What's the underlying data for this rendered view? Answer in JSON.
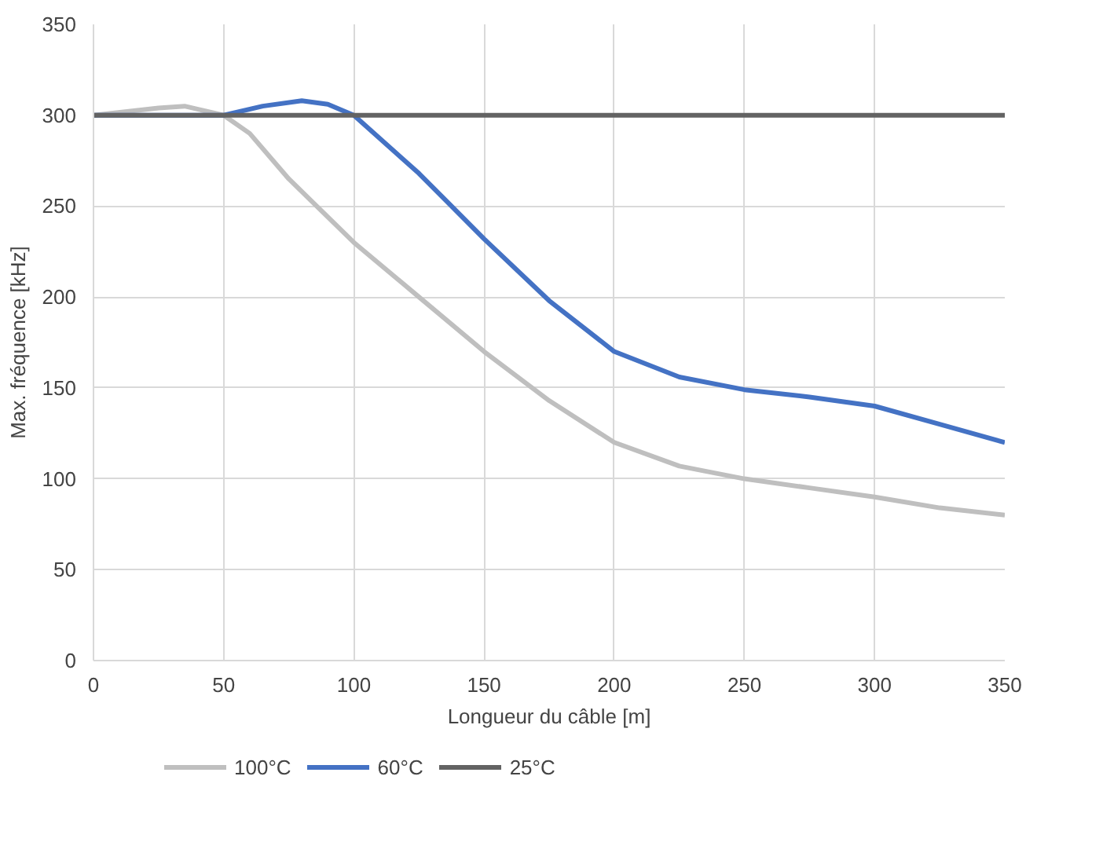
{
  "chart_data": {
    "type": "line",
    "xlabel": "Longueur du câble [m]",
    "ylabel": "Max. fréquence [kHz]",
    "xlim": [
      0,
      350
    ],
    "xticks": [
      0,
      50,
      100,
      150,
      200,
      250,
      300,
      350
    ],
    "ylim": [
      0,
      350
    ],
    "yticks": [
      0,
      50,
      100,
      150,
      200,
      250,
      300,
      350
    ],
    "grid": true,
    "legend": "bottom",
    "series": [
      {
        "name": "100°C",
        "color": "#bfbfbf",
        "x": [
          0,
          25,
          35,
          50,
          60,
          75,
          100,
          125,
          150,
          175,
          200,
          225,
          250,
          275,
          300,
          325,
          350
        ],
        "values": [
          300,
          304,
          305,
          300,
          290,
          265,
          230,
          200,
          170,
          143,
          120,
          107,
          100,
          95,
          90,
          84,
          80
        ]
      },
      {
        "name": "60°C",
        "color": "#4472c4",
        "x": [
          0,
          25,
          50,
          65,
          80,
          90,
          100,
          125,
          150,
          175,
          200,
          225,
          250,
          275,
          300,
          325,
          350
        ],
        "values": [
          300,
          300,
          300,
          305,
          308,
          306,
          300,
          268,
          232,
          198,
          170,
          156,
          149,
          145,
          140,
          130,
          120
        ]
      },
      {
        "name": "25°C",
        "color": "#636363",
        "x": [
          0,
          350
        ],
        "values": [
          300,
          300
        ]
      }
    ]
  }
}
